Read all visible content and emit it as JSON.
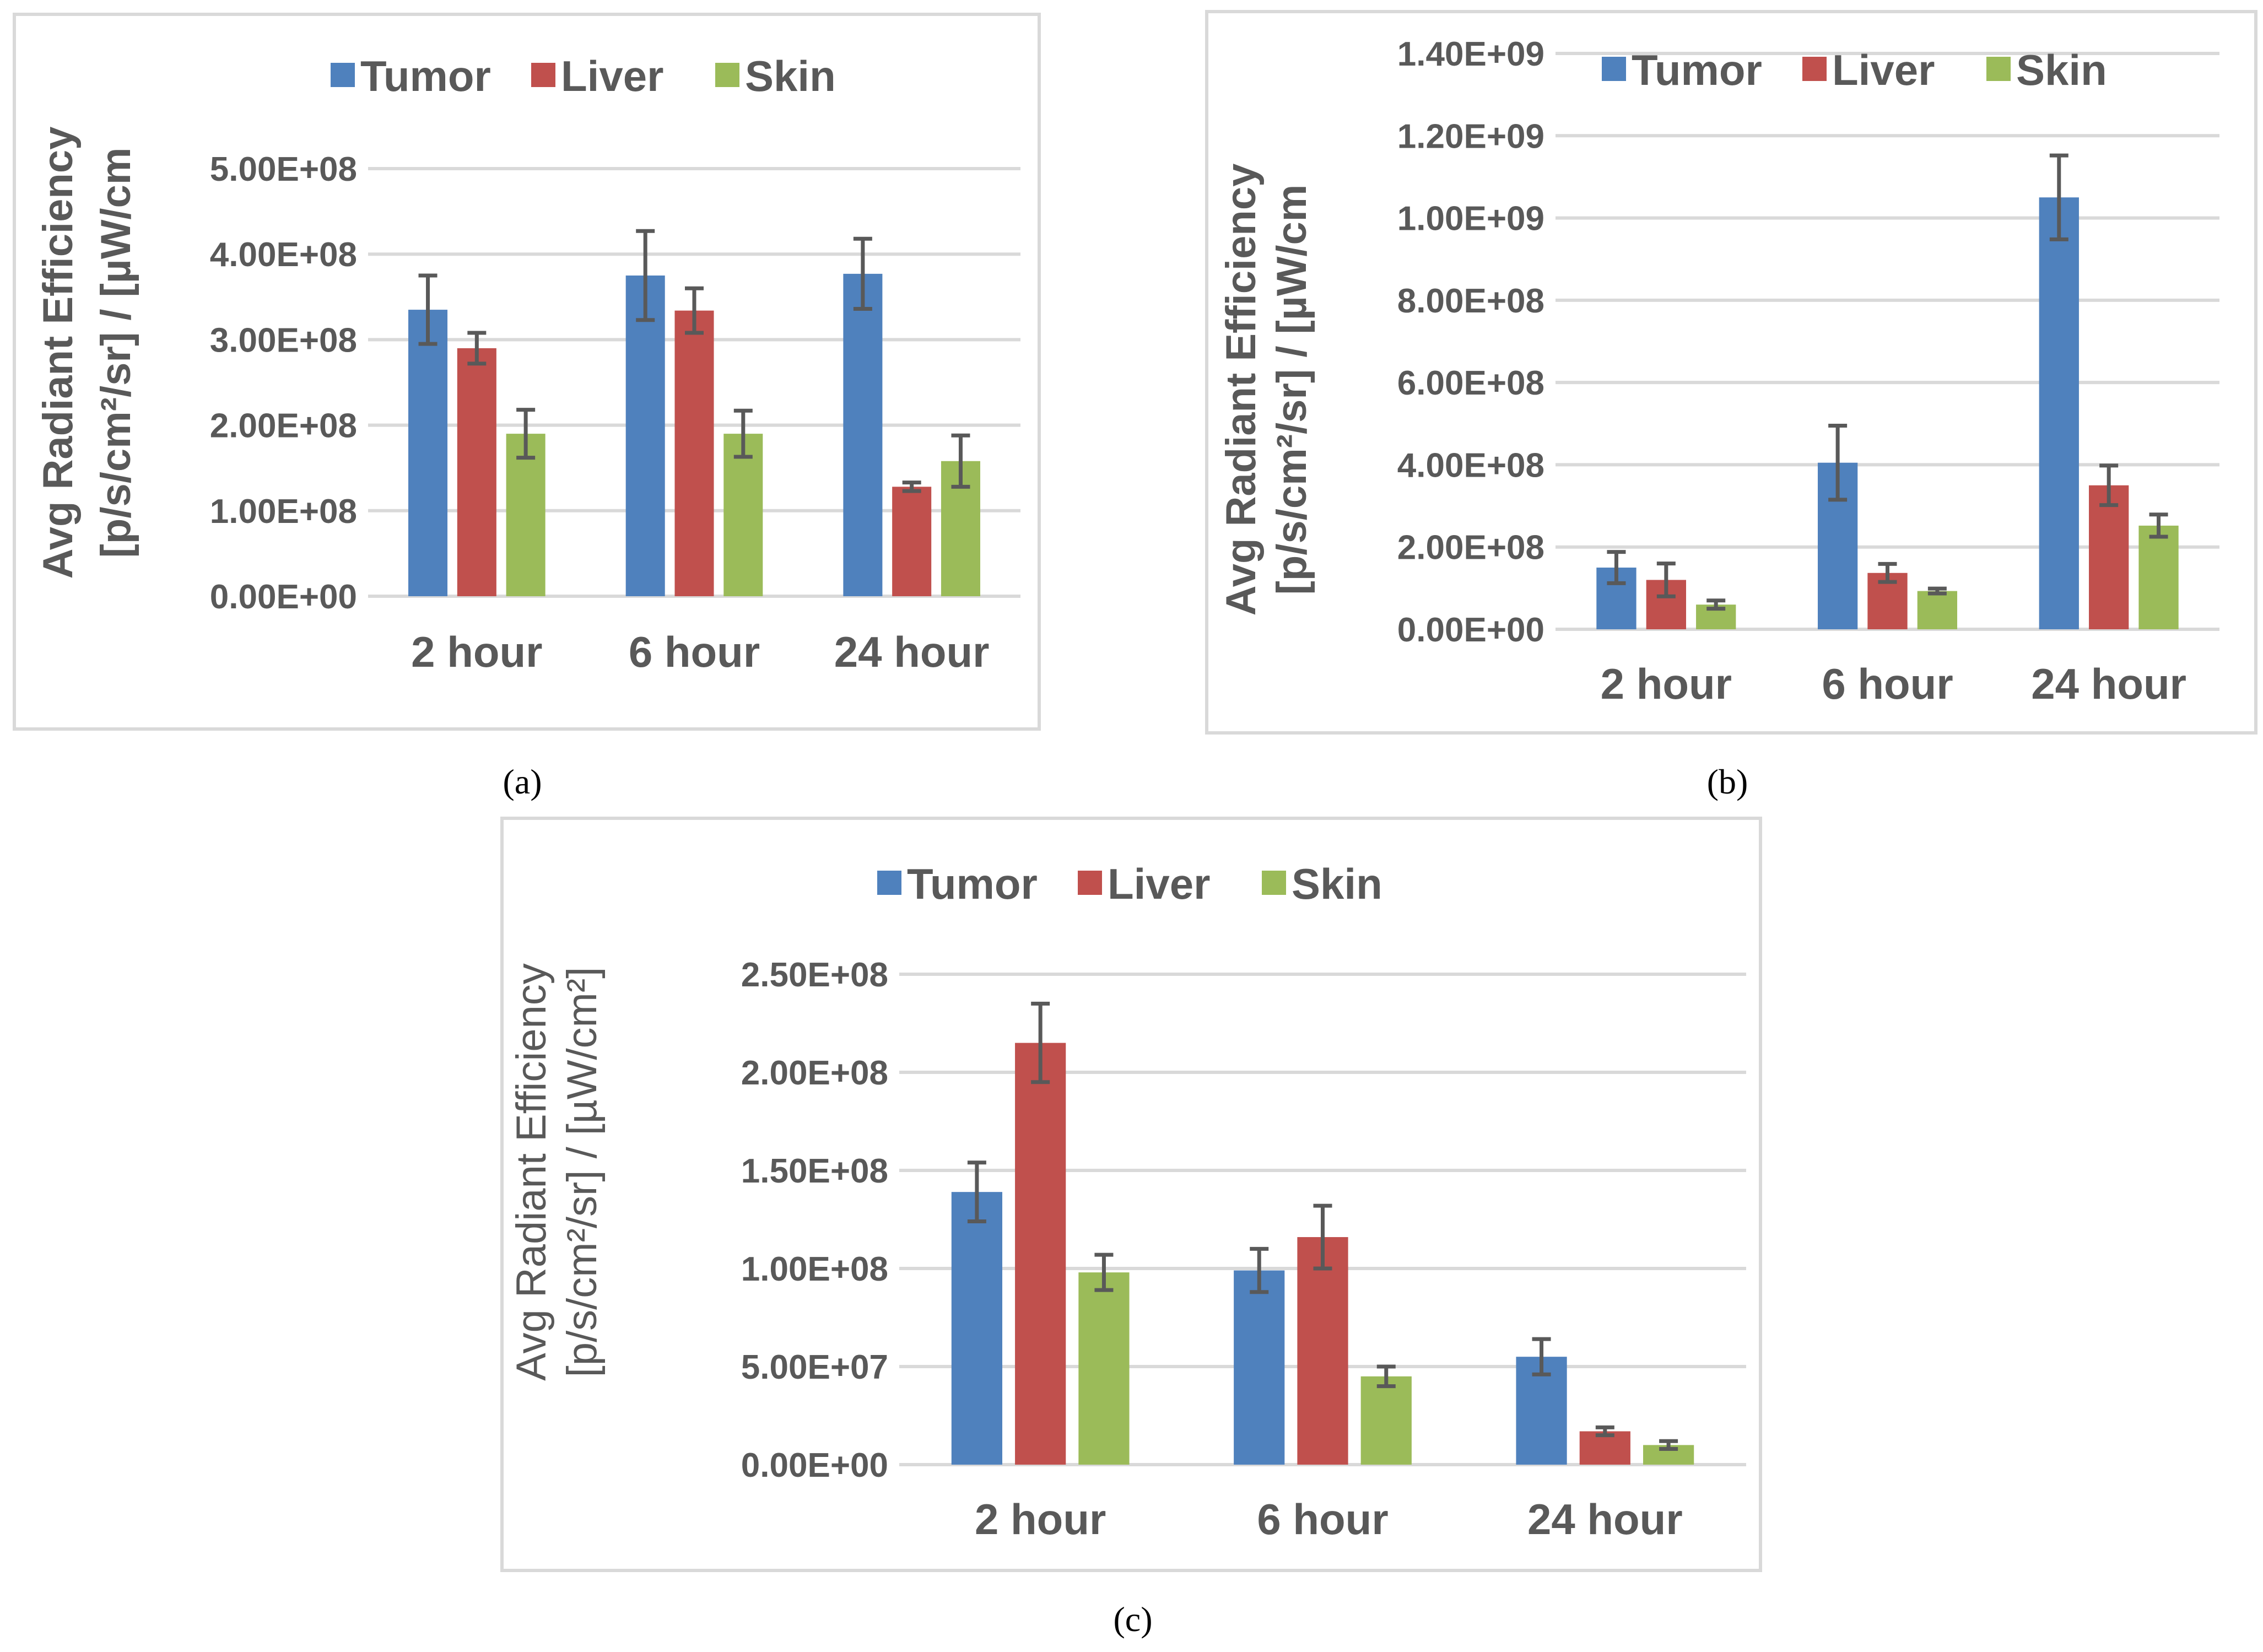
{
  "colors": {
    "Tumor": "#4f81bd",
    "Liver": "#c0504d",
    "Skin": "#9bbb59",
    "text": "#595959",
    "grid": "#d9d9d9",
    "frame": "#d9d9d9"
  },
  "chart_data": [
    {
      "panel_label": "(a)",
      "type": "bar",
      "categories": [
        "2 hour",
        "6 hour",
        "24 hour"
      ],
      "ylabel": [
        "Avg Radiant Efficiency",
        "[p/s/cm²/sr] / [µW/cm"
      ],
      "ylim": [
        0,
        500000000
      ],
      "yticks": [
        "0.00E+00",
        "1.00E+08",
        "2.00E+08",
        "3.00E+08",
        "4.00E+08",
        "5.00E+08"
      ],
      "grid": true,
      "legend": "top",
      "series": [
        {
          "name": "Tumor",
          "values": [
            335000000,
            375000000,
            377000000
          ],
          "errors": [
            40000000,
            52000000,
            41000000
          ]
        },
        {
          "name": "Liver",
          "values": [
            290000000,
            334000000,
            128000000
          ],
          "errors": [
            18000000,
            26000000,
            5000000
          ]
        },
        {
          "name": "Skin",
          "values": [
            190000000,
            190000000,
            158000000
          ],
          "errors": [
            28000000,
            27000000,
            30000000
          ]
        }
      ]
    },
    {
      "panel_label": "(b)",
      "type": "bar",
      "categories": [
        "2 hour",
        "6 hour",
        "24 hour"
      ],
      "ylabel": [
        "Avg Radiant Efficiency",
        "[p/s/cm²/sr] / [µW/cm"
      ],
      "ylim": [
        0,
        1400000000
      ],
      "yticks": [
        "0.00E+00",
        "2.00E+08",
        "4.00E+08",
        "6.00E+08",
        "8.00E+08",
        "1.00E+09",
        "1.20E+09",
        "1.40E+09"
      ],
      "grid": true,
      "legend": "top",
      "series": [
        {
          "name": "Tumor",
          "values": [
            150000000,
            405000000,
            1050000000
          ],
          "errors": [
            38000000,
            90000000,
            102000000
          ]
        },
        {
          "name": "Liver",
          "values": [
            120000000,
            137000000,
            350000000
          ],
          "errors": [
            40000000,
            22000000,
            48000000
          ]
        },
        {
          "name": "Skin",
          "values": [
            60000000,
            93000000,
            252000000
          ],
          "errors": [
            10000000,
            6000000,
            27000000
          ]
        }
      ]
    },
    {
      "panel_label": "(c)",
      "type": "bar",
      "categories": [
        "2 hour",
        "6 hour",
        "24 hour"
      ],
      "ylabel": [
        "Avg Radiant Efficiency",
        "[p/s/cm²/sr] / [µW/cm²]"
      ],
      "ylim": [
        0,
        250000000
      ],
      "yticks": [
        "0.00E+00",
        "5.00E+07",
        "1.00E+08",
        "1.50E+08",
        "2.00E+08",
        "2.50E+08"
      ],
      "grid": true,
      "legend": "top",
      "series": [
        {
          "name": "Tumor",
          "values": [
            139000000,
            99000000,
            55000000
          ],
          "errors": [
            15000000,
            11000000,
            9000000
          ]
        },
        {
          "name": "Liver",
          "values": [
            215000000,
            116000000,
            17000000
          ],
          "errors": [
            20000000,
            16000000,
            2000000
          ]
        },
        {
          "name": "Skin",
          "values": [
            98000000,
            45000000,
            10000000
          ],
          "errors": [
            9000000,
            5000000,
            2000000
          ]
        }
      ]
    }
  ]
}
